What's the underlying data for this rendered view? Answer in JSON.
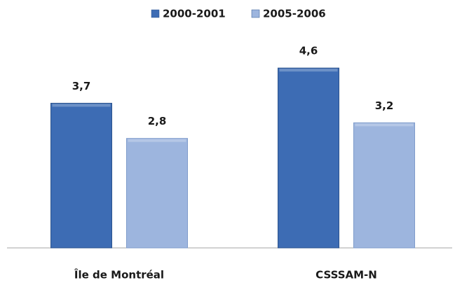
{
  "chart_data": {
    "type": "bar",
    "categories": [
      "Île de Montréal",
      "CSSSAM-N"
    ],
    "series": [
      {
        "name": "2000-2001",
        "color": "#3d6cb4",
        "values": [
          3.7,
          4.6
        ],
        "value_labels": [
          "3,7",
          "4,6"
        ]
      },
      {
        "name": "2005-2006",
        "color": "#9db5de",
        "values": [
          2.8,
          3.2
        ],
        "value_labels": [
          "2,8",
          "3,2"
        ]
      }
    ],
    "ylim": [
      0,
      6
    ],
    "legend": "top"
  }
}
